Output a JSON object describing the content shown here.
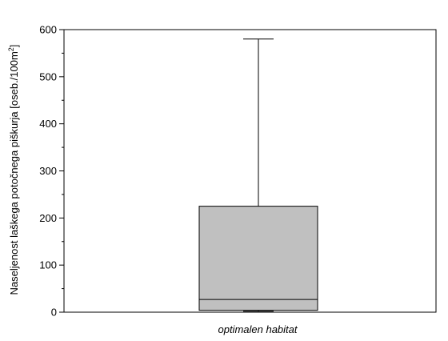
{
  "chart_data": {
    "type": "box",
    "categories": [
      "optimalen habitat"
    ],
    "series": [
      {
        "min": 2,
        "q1": 4,
        "median": 27,
        "q3": 225,
        "max": 580
      }
    ],
    "ylabel_main": "Naseljenost laškega potočnega piškurja [oseb./100m",
    "ylabel_superscript": "2",
    "ylabel_end": "]",
    "ylim": [
      0,
      600
    ],
    "yticks": [
      0,
      100,
      200,
      300,
      400,
      500,
      600
    ],
    "ytick_labels": [
      "0",
      "100",
      "200",
      "300",
      "400",
      "500",
      "600"
    ],
    "grid": false,
    "colors": {
      "box_fill": "#c0c0c0",
      "line": "#000000"
    }
  }
}
